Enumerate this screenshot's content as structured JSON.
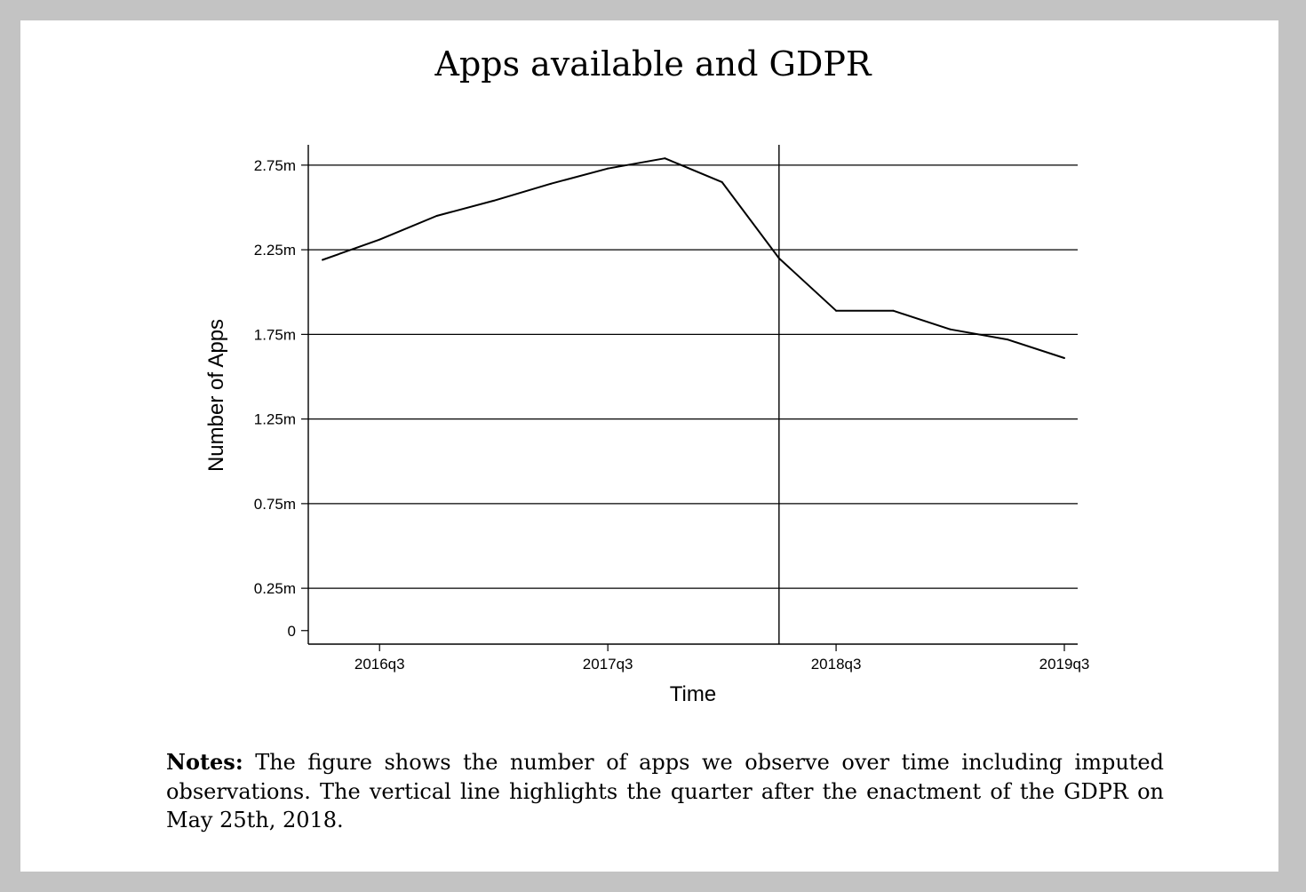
{
  "figure": {
    "title": "Apps available and GDPR",
    "notes_label": "Notes:",
    "notes_text": "The figure shows the number of apps we observe over time including imputed observations. The vertical line highlights the quarter after the enactment of the GDPR on May 25th, 2018."
  },
  "colors": {
    "frame_background": "#c3c3c3",
    "paper": "#ffffff",
    "line": "#000000",
    "grid": "#000000"
  },
  "chart_data": {
    "type": "line",
    "title": "",
    "xlabel": "Time",
    "ylabel": "Number of Apps",
    "x": [
      "2016q2",
      "2016q3",
      "2016q4",
      "2017q1",
      "2017q2",
      "2017q3",
      "2017q4",
      "2018q1",
      "2018q2",
      "2018q3",
      "2018q4",
      "2019q1",
      "2019q2",
      "2019q3"
    ],
    "series": [
      {
        "values": [
          2.19,
          2.31,
          2.45,
          2.54,
          2.64,
          2.73,
          2.79,
          2.65,
          2.2,
          1.89,
          1.89,
          1.78,
          1.72,
          1.61
        ]
      }
    ],
    "x_ticks": [
      "2016q3",
      "2017q3",
      "2018q3",
      "2019q3"
    ],
    "y_ticks": [
      {
        "value": 0,
        "label": "0"
      },
      {
        "value": 0.25,
        "label": "0.25m"
      },
      {
        "value": 0.75,
        "label": "0.75m"
      },
      {
        "value": 1.25,
        "label": "1.25m"
      },
      {
        "value": 1.75,
        "label": "1.75m"
      },
      {
        "value": 2.25,
        "label": "2.25m"
      },
      {
        "value": 2.75,
        "label": "2.75m"
      }
    ],
    "ylim": [
      -0.08,
      2.87
    ],
    "xlim": [
      "2016q2",
      "2019q3"
    ],
    "grid": true,
    "vertical_line_at": "2018q2",
    "legend": "none"
  }
}
